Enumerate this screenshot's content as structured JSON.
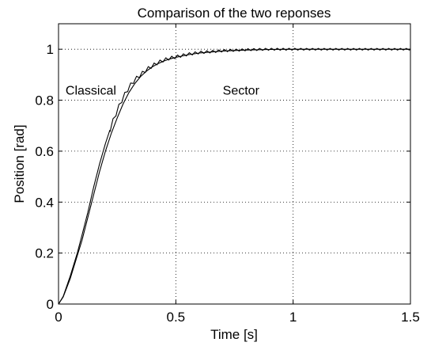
{
  "chart_data": {
    "type": "line",
    "title": "Comparison of the two reponses",
    "xlabel": "Time [s]",
    "ylabel": "Position [rad]",
    "xlim": [
      0,
      1.5
    ],
    "ylim": [
      0,
      1.1
    ],
    "xticks": [
      0,
      0.5,
      1,
      1.5
    ],
    "xtick_labels": [
      "0",
      "0.5",
      "1",
      "1.5"
    ],
    "yticks": [
      0,
      0.2,
      0.4,
      0.6,
      0.8,
      1
    ],
    "ytick_labels": [
      "0",
      "0.2",
      "0.4",
      "0.6",
      "0.8",
      "1"
    ],
    "grid": true,
    "grid_style": "dotted",
    "line_color": "#000000",
    "annotations": [
      {
        "text": "Classical",
        "x": 0.03,
        "y": 0.84
      },
      {
        "text": "Sector",
        "x": 0.7,
        "y": 0.84
      }
    ],
    "series": [
      {
        "label_ref": "Classical",
        "x": [
          0,
          0.02,
          0.05,
          0.08,
          0.1,
          0.125,
          0.15,
          0.175,
          0.2,
          0.225,
          0.25,
          0.275,
          0.3,
          0.325,
          0.35,
          0.375,
          0.4,
          0.425,
          0.45,
          0.475,
          0.5,
          0.55,
          0.6,
          0.7,
          0.8,
          0.9,
          1.0,
          1.1,
          1.2,
          1.3,
          1.4,
          1.5
        ],
        "y": [
          0,
          0.028,
          0.1,
          0.19,
          0.25,
          0.34,
          0.43,
          0.52,
          0.6,
          0.67,
          0.73,
          0.785,
          0.83,
          0.865,
          0.893,
          0.914,
          0.931,
          0.944,
          0.954,
          0.962,
          0.968,
          0.978,
          0.985,
          0.993,
          0.997,
          0.999,
          1.0,
          1.0,
          1.0,
          1.0,
          1.0,
          1.0
        ]
      },
      {
        "label_ref": "Sector",
        "x": [
          0,
          0.02,
          0.05,
          0.08,
          0.1,
          0.125,
          0.15,
          0.175,
          0.2,
          0.225,
          0.25,
          0.275,
          0.3,
          0.325,
          0.35,
          0.375,
          0.4,
          0.425,
          0.45,
          0.475,
          0.5,
          0.55,
          0.6,
          0.7,
          0.8,
          0.9,
          1.0,
          1.1,
          1.2,
          1.3,
          1.4,
          1.5
        ],
        "y": [
          0,
          0.03,
          0.11,
          0.2,
          0.27,
          0.36,
          0.46,
          0.55,
          0.63,
          0.7,
          0.76,
          0.81,
          0.85,
          0.88,
          0.9,
          0.92,
          0.935,
          0.948,
          0.958,
          0.965,
          0.97,
          0.98,
          0.987,
          0.994,
          0.998,
          1.0,
          1.0,
          1.0,
          1.0,
          1.0,
          1.0,
          1.0
        ],
        "ripple": {
          "period_s": 0.025,
          "amplitude": [
            0.02,
            0.006
          ],
          "start_s": 0.22
        }
      }
    ]
  }
}
